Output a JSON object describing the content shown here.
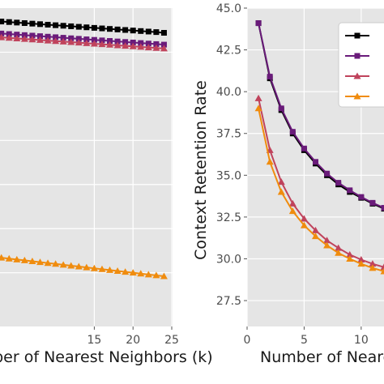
{
  "chart_data": [
    {
      "type": "line",
      "xlabel": "Number of Nearest Neighbors (k)",
      "ylabel": "",
      "xlim": [
        0,
        25
      ],
      "ylim": [
        27.0,
        45.0
      ],
      "xticks": [
        15,
        20,
        25
      ],
      "yticks": [],
      "grid": true,
      "x": [
        1,
        2,
        3,
        4,
        5,
        6,
        7,
        8,
        9,
        10,
        11,
        12,
        13,
        14,
        15,
        16,
        17,
        18,
        19,
        20,
        21,
        22,
        23,
        24
      ],
      "series": [
        {
          "color": "#000000",
          "marker": "square",
          "values": [
            44.3,
            44.27,
            44.24,
            44.21,
            44.18,
            44.15,
            44.12,
            44.09,
            44.06,
            44.03,
            44.0,
            43.97,
            43.94,
            43.91,
            43.88,
            43.85,
            43.82,
            43.79,
            43.76,
            43.73,
            43.7,
            43.67,
            43.64,
            43.6
          ]
        },
        {
          "color": "#6a1b7a",
          "marker": "square",
          "values": [
            43.62,
            43.59,
            43.56,
            43.53,
            43.5,
            43.47,
            43.44,
            43.41,
            43.38,
            43.35,
            43.32,
            43.29,
            43.26,
            43.23,
            43.2,
            43.17,
            43.14,
            43.11,
            43.08,
            43.05,
            43.02,
            42.99,
            42.96,
            42.93
          ]
        },
        {
          "color": "#c0435c",
          "marker": "triangle",
          "values": [
            43.4,
            43.37,
            43.34,
            43.31,
            43.28,
            43.25,
            43.22,
            43.19,
            43.16,
            43.13,
            43.1,
            43.07,
            43.04,
            43.01,
            42.98,
            42.95,
            42.92,
            42.89,
            42.86,
            42.83,
            42.8,
            42.77,
            42.74,
            42.71
          ]
        },
        {
          "color": "#f08c0e",
          "marker": "triangle",
          "values": [
            30.95,
            30.9,
            30.85,
            30.8,
            30.75,
            30.7,
            30.65,
            30.6,
            30.55,
            30.5,
            30.45,
            30.4,
            30.35,
            30.3,
            30.25,
            30.2,
            30.15,
            30.1,
            30.05,
            30.0,
            29.95,
            29.9,
            29.85,
            29.8
          ]
        }
      ]
    },
    {
      "type": "line",
      "xlabel": "Number of Nearest Neighbors (k)",
      "ylabel": "Context Retention Rate",
      "xlim": [
        0,
        12
      ],
      "ylim": [
        26.0,
        45.0
      ],
      "xticks": [
        0,
        5,
        10
      ],
      "yticks": [
        27.5,
        30.0,
        32.5,
        35.0,
        37.5,
        40.0,
        42.5,
        45.0
      ],
      "grid": true,
      "legend": "top-right",
      "x": [
        1,
        2,
        3,
        4,
        5,
        6,
        7,
        8,
        9,
        10,
        11,
        12
      ],
      "series": [
        {
          "color": "#000000",
          "marker": "square",
          "values": [
            44.1,
            40.8,
            38.9,
            37.5,
            36.5,
            35.7,
            35.0,
            34.45,
            34.0,
            33.65,
            33.3,
            33.0
          ]
        },
        {
          "color": "#6a1b7a",
          "marker": "square",
          "values": [
            44.1,
            40.9,
            39.0,
            37.6,
            36.6,
            35.8,
            35.1,
            34.55,
            34.1,
            33.7,
            33.35,
            33.05
          ]
        },
        {
          "color": "#c0435c",
          "marker": "triangle",
          "values": [
            39.6,
            36.5,
            34.6,
            33.3,
            32.4,
            31.7,
            31.1,
            30.65,
            30.25,
            29.95,
            29.7,
            29.5
          ]
        },
        {
          "color": "#f08c0e",
          "marker": "triangle",
          "values": [
            39.0,
            35.8,
            34.0,
            32.85,
            32.0,
            31.35,
            30.8,
            30.35,
            30.0,
            29.7,
            29.45,
            29.25
          ]
        }
      ]
    }
  ]
}
